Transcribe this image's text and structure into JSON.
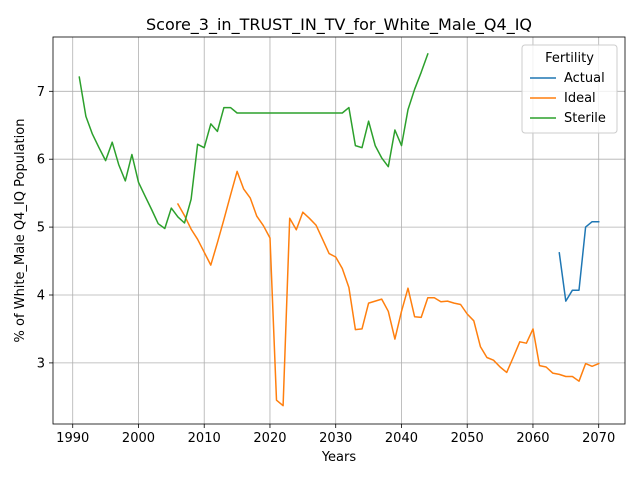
{
  "chart_data": {
    "type": "line",
    "title": "Score_3_in_TRUST_IN_TV_for_White_Male_Q4_IQ",
    "xlabel": "Years",
    "ylabel": "% of White_Male Q4_IQ Population",
    "xlim": [
      1987,
      2074
    ],
    "ylim": [
      2.1,
      7.8
    ],
    "xticks": [
      1990,
      2000,
      2010,
      2020,
      2030,
      2040,
      2050,
      2060,
      2070
    ],
    "yticks": [
      3,
      4,
      5,
      6,
      7
    ],
    "grid": true,
    "legend": {
      "title": "Fertility",
      "position": "top-right"
    },
    "series": [
      {
        "name": "Actual",
        "color": "#1f77b4",
        "x": [
          2064,
          2065,
          2066,
          2067,
          2068,
          2069,
          2070
        ],
        "y": [
          4.62,
          3.91,
          4.07,
          4.07,
          5.0,
          5.08,
          5.08
        ]
      },
      {
        "name": "Ideal",
        "color": "#ff7f0e",
        "x": [
          2006,
          2007,
          2008,
          2009,
          2010,
          2011,
          2012,
          2013,
          2014,
          2015,
          2016,
          2017,
          2018,
          2019,
          2020,
          2021,
          2022,
          2023,
          2024,
          2025,
          2026,
          2027,
          2028,
          2029,
          2030,
          2031,
          2032,
          2033,
          2034,
          2035,
          2036,
          2037,
          2038,
          2039,
          2040,
          2041,
          2042,
          2043,
          2044,
          2045,
          2046,
          2047,
          2048,
          2049,
          2050,
          2051,
          2052,
          2053,
          2054,
          2055,
          2056,
          2057,
          2058,
          2059,
          2060,
          2061,
          2062,
          2063,
          2064,
          2065,
          2066,
          2067,
          2068,
          2069,
          2070
        ],
        "y": [
          5.34,
          5.17,
          4.97,
          4.82,
          4.63,
          4.44,
          4.77,
          5.11,
          5.47,
          5.82,
          5.56,
          5.43,
          5.16,
          5.02,
          4.84,
          2.45,
          2.37,
          5.13,
          4.96,
          5.22,
          5.13,
          5.03,
          4.82,
          4.61,
          4.56,
          4.39,
          4.11,
          3.49,
          3.5,
          3.88,
          3.91,
          3.94,
          3.76,
          3.35,
          3.76,
          4.1,
          3.68,
          3.67,
          3.96,
          3.96,
          3.9,
          3.91,
          3.88,
          3.86,
          3.72,
          3.62,
          3.24,
          3.08,
          3.04,
          2.94,
          2.86,
          3.08,
          3.31,
          3.29,
          3.5,
          2.96,
          2.94,
          2.85,
          2.83,
          2.8,
          2.8,
          2.73,
          2.99,
          2.95,
          2.99
        ]
      },
      {
        "name": "Sterile",
        "color": "#2ca02c",
        "x": [
          1991,
          1992,
          1993,
          1994,
          1995,
          1996,
          1997,
          1998,
          1999,
          2000,
          2001,
          2002,
          2003,
          2004,
          2005,
          2006,
          2007,
          2008,
          2009,
          2010,
          2011,
          2012,
          2013,
          2014,
          2015,
          2016,
          2017,
          2018,
          2019,
          2020,
          2021,
          2022,
          2023,
          2024,
          2025,
          2026,
          2027,
          2028,
          2029,
          2030,
          2031,
          2032,
          2033,
          2034,
          2035,
          2036,
          2037,
          2038,
          2039,
          2040,
          2041,
          2042,
          2043,
          2044
        ],
        "y": [
          7.21,
          6.63,
          6.37,
          6.17,
          5.98,
          6.25,
          5.92,
          5.68,
          6.07,
          5.66,
          5.46,
          5.26,
          5.05,
          4.98,
          5.28,
          5.15,
          5.06,
          5.41,
          6.22,
          6.17,
          6.52,
          6.41,
          6.76,
          6.76,
          6.68,
          6.68,
          6.68,
          6.68,
          6.68,
          6.68,
          6.68,
          6.68,
          6.68,
          6.68,
          6.68,
          6.68,
          6.68,
          6.68,
          6.68,
          6.68,
          6.68,
          6.76,
          6.2,
          6.17,
          6.56,
          6.2,
          6.02,
          5.89,
          6.43,
          6.2,
          6.73,
          7.03,
          7.28,
          7.55
        ]
      }
    ]
  }
}
